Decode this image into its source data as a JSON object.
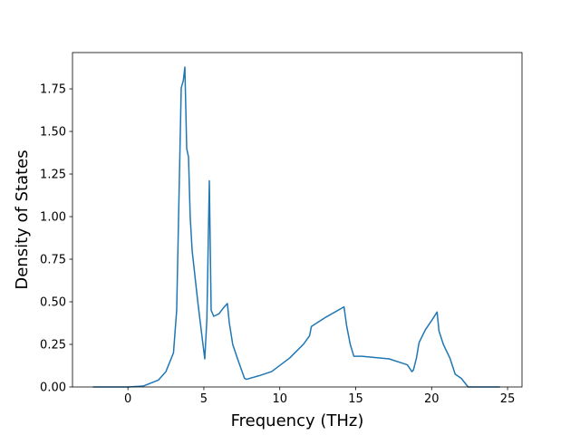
{
  "chart_data": {
    "type": "line",
    "xlabel": "Frequency (THz)",
    "ylabel": "Density of States",
    "color": "#1f77b4",
    "x": [
      -2.3,
      0,
      1,
      2,
      2.5,
      3,
      3.21,
      3.51,
      3.65,
      3.75,
      3.87,
      3.99,
      4.1,
      4.23,
      4.6,
      4.9,
      5.06,
      5.2,
      5.36,
      5.48,
      5.65,
      6.0,
      6.25,
      6.55,
      6.67,
      6.9,
      7.2,
      7.68,
      7.8,
      8.6,
      9.46,
      10.65,
      11.55,
      11.96,
      12.08,
      13.04,
      14.23,
      14.4,
      14.64,
      14.88,
      15.4,
      17.2,
      18.4,
      18.7,
      18.8,
      19.0,
      19.17,
      19.58,
      20.0,
      20.36,
      20.48,
      20.77,
      21.2,
      21.55,
      21.96,
      22.4,
      24.5
    ],
    "values": [
      0,
      0,
      0.005,
      0.04,
      0.09,
      0.2,
      0.45,
      1.755,
      1.8,
      1.878,
      1.4,
      1.35,
      1.0,
      0.8,
      0.5,
      0.28,
      0.165,
      0.4,
      1.21,
      0.45,
      0.415,
      0.43,
      0.46,
      0.49,
      0.38,
      0.25,
      0.17,
      0.05,
      0.045,
      0.065,
      0.09,
      0.17,
      0.25,
      0.3,
      0.355,
      0.41,
      0.47,
      0.36,
      0.25,
      0.18,
      0.18,
      0.165,
      0.13,
      0.09,
      0.1,
      0.17,
      0.26,
      0.335,
      0.39,
      0.44,
      0.33,
      0.25,
      0.17,
      0.075,
      0.05,
      0,
      0
    ],
    "xlim": [
      -3.65,
      25.95
    ],
    "xticks": [
      0,
      5,
      10,
      15,
      20,
      25
    ],
    "ylim": [
      0,
      1.963
    ],
    "yticks": [
      {
        "value": 0,
        "label": "0.00"
      },
      {
        "value": 0.25,
        "label": "0.25"
      },
      {
        "value": 0.5,
        "label": "0.50"
      },
      {
        "value": 0.75,
        "label": "0.75"
      },
      {
        "value": 1,
        "label": "1.00"
      },
      {
        "value": 1.25,
        "label": "1.25"
      },
      {
        "value": 1.5,
        "label": "1.50"
      },
      {
        "value": 1.75,
        "label": "1.75"
      }
    ]
  }
}
